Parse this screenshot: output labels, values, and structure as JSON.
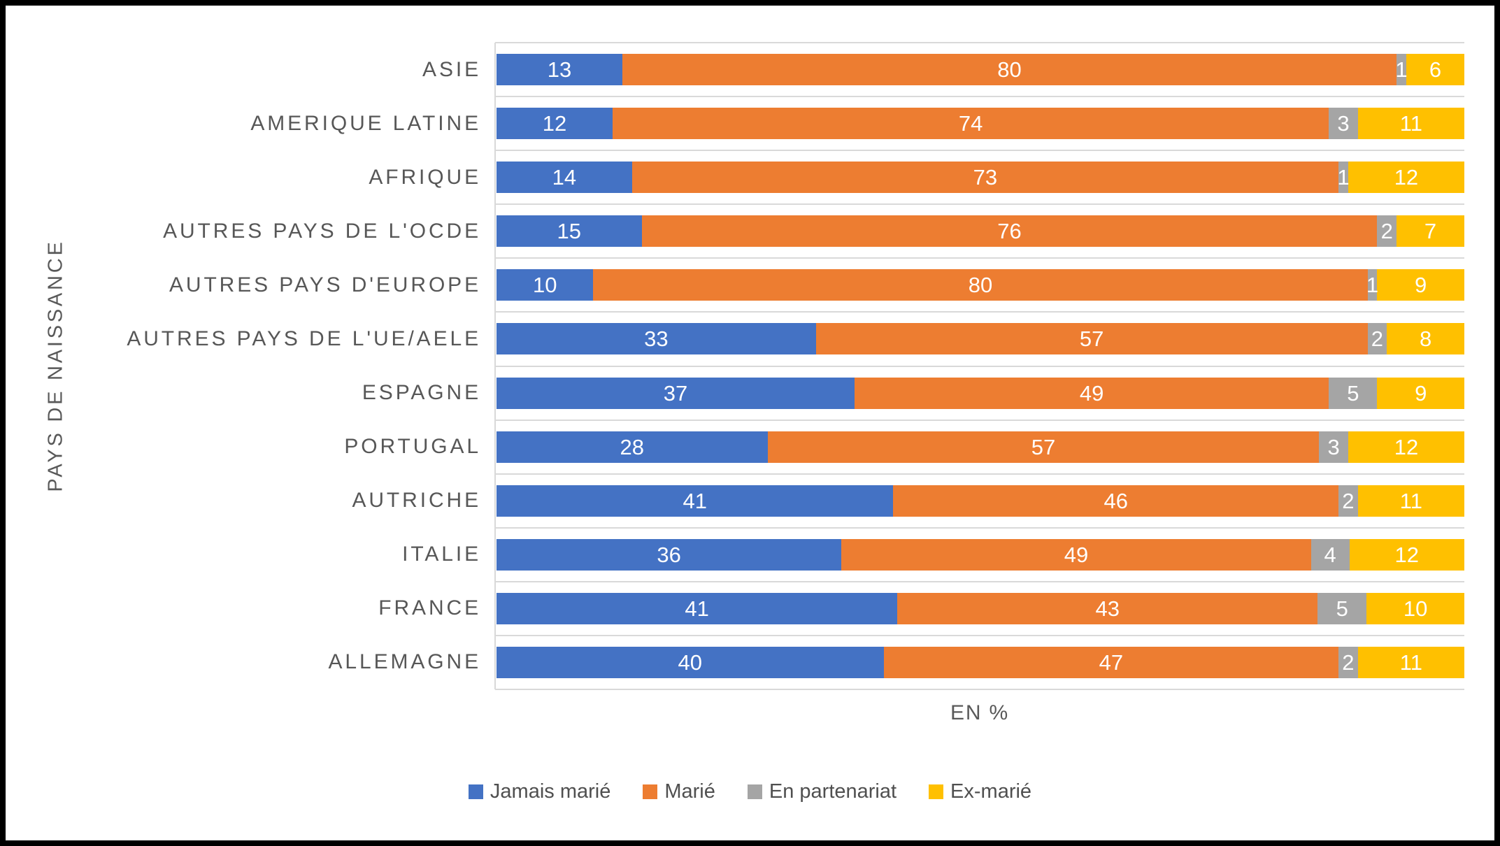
{
  "chart_data": {
    "type": "bar",
    "variant": "horizontal-stacked-100",
    "title": "",
    "xlabel": "EN %",
    "ylabel": "PAYS DE NAISSANCE",
    "xlim": [
      0,
      100
    ],
    "grid": true,
    "legend_position": "bottom",
    "categories": [
      "ASIE",
      "AMERIQUE LATINE",
      "AFRIQUE",
      "AUTRES PAYS DE L'OCDE",
      "AUTRES PAYS D'EUROPE",
      "AUTRES PAYS DE L'UE/AELE",
      "ESPAGNE",
      "PORTUGAL",
      "AUTRICHE",
      "ITALIE",
      "FRANCE",
      "ALLEMAGNE"
    ],
    "series": [
      {
        "name": "Jamais marié",
        "color": "#4472c4",
        "values": [
          13,
          12,
          14,
          15,
          10,
          33,
          37,
          28,
          41,
          36,
          41,
          40
        ]
      },
      {
        "name": "Marié",
        "color": "#ed7d31",
        "values": [
          80,
          74,
          73,
          76,
          80,
          57,
          49,
          57,
          46,
          49,
          43,
          47
        ]
      },
      {
        "name": "En partenariat",
        "color": "#a5a5a5",
        "values": [
          1,
          3,
          1,
          2,
          1,
          2,
          5,
          3,
          2,
          4,
          5,
          2
        ]
      },
      {
        "name": "Ex-marié",
        "color": "#ffc000",
        "values": [
          6,
          11,
          12,
          7,
          9,
          8,
          9,
          12,
          11,
          12,
          10,
          11
        ]
      }
    ],
    "value_label_color": "#ffffff",
    "gridline_color": "#d9d9d9",
    "text_color": "#595959",
    "frame_color": "#000000",
    "background_color": "#ffffff"
  }
}
